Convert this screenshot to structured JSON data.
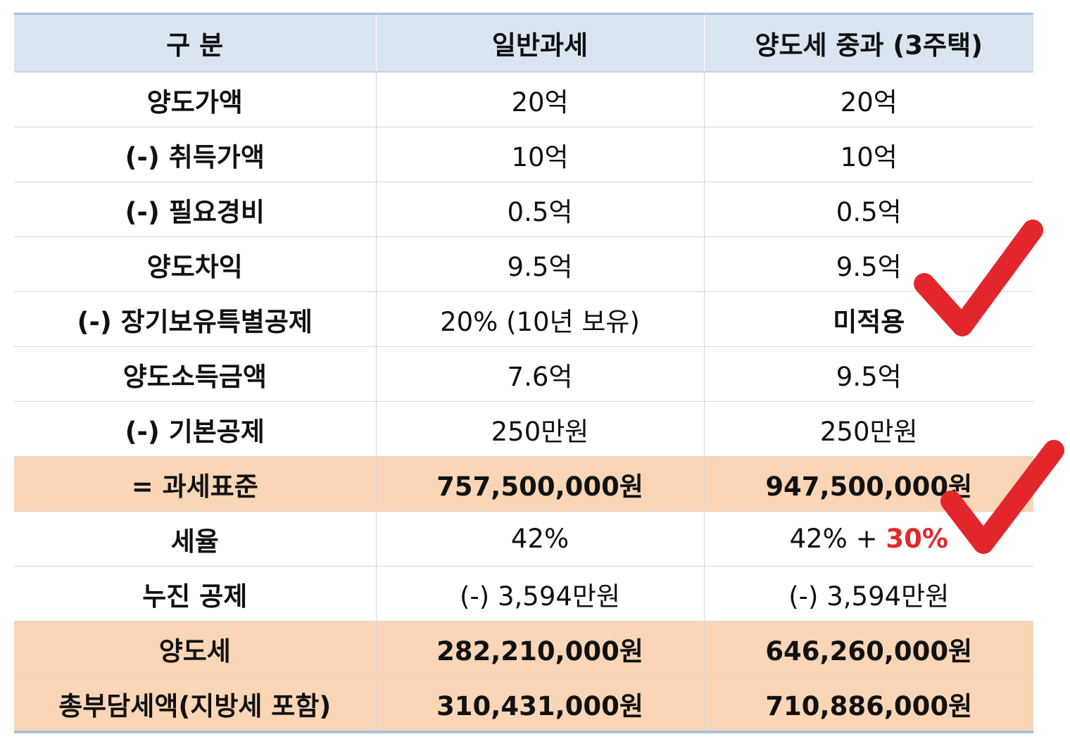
{
  "table": {
    "headers": [
      "구 분",
      "일반과세",
      "양도세 중과 (3주택)"
    ],
    "rows": [
      {
        "label": "양도가액",
        "general": "20억",
        "heavy": "20억"
      },
      {
        "label": "(-) 취득가액",
        "general": "10억",
        "heavy": "10억"
      },
      {
        "label": "(-) 필요경비",
        "general": "0.5억",
        "heavy": "0.5억"
      },
      {
        "label": "양도차익",
        "general": "9.5억",
        "heavy": "9.5억"
      },
      {
        "label": "(-) 장기보유특별공제",
        "general": "20% (10년 보유)",
        "heavy": "미적용"
      },
      {
        "label": "양도소득금액",
        "general": "7.6억",
        "heavy": "9.5억"
      },
      {
        "label": "(-) 기본공제",
        "general": "250만원",
        "heavy": "250만원"
      },
      {
        "label": "= 과세표준",
        "general": "757,500,000원",
        "heavy": "947,500,000원"
      },
      {
        "label": "세율",
        "general": "42%",
        "heavy_base": "42% + ",
        "heavy_extra": "30%"
      },
      {
        "label": "누진 공제",
        "general": "(-) 3,594만원",
        "heavy": "(-) 3,594만원"
      },
      {
        "label": "양도세",
        "general": "282,210,000원",
        "heavy": "646,260,000원"
      },
      {
        "label": "총부담세액(지방세 포함)",
        "general": "310,431,000원",
        "heavy": "710,886,000원"
      }
    ]
  },
  "colors": {
    "header_bg": "#dae5f2",
    "highlight_bg": "#fad6b6",
    "accent_red": "#e02a2a"
  },
  "icons": [
    "checkmark-icon",
    "checkmark-icon"
  ]
}
